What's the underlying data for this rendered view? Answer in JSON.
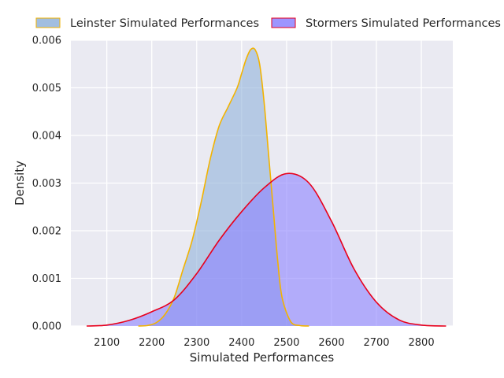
{
  "chart_data": {
    "type": "area",
    "title": "",
    "xlabel": "Simulated Performances",
    "ylabel": "Density",
    "xlim": [
      2020,
      2870
    ],
    "ylim": [
      0,
      0.006
    ],
    "xticks": [
      2100,
      2200,
      2300,
      2400,
      2500,
      2600,
      2700,
      2800
    ],
    "xtick_labels": [
      "2100",
      "2200",
      "2300",
      "2400",
      "2500",
      "2600",
      "2700",
      "2800"
    ],
    "yticks": [
      0,
      0.001,
      0.002,
      0.003,
      0.004,
      0.005,
      0.006
    ],
    "ytick_labels": [
      "0.000",
      "0.001",
      "0.002",
      "0.003",
      "0.004",
      "0.005",
      "0.006"
    ],
    "grid": true,
    "legend_position": "top",
    "series": [
      {
        "name": "Leinster Simulated Performances",
        "fill_color": "#91b3da",
        "line_color": "#f2b300",
        "x": [
          2170,
          2190,
          2210,
          2230,
          2250,
          2270,
          2290,
          2310,
          2330,
          2350,
          2370,
          2390,
          2400,
          2410,
          2420,
          2430,
          2440,
          2450,
          2460,
          2470,
          2480,
          2490,
          2510,
          2530,
          2550
        ],
        "y": [
          0.0,
          1e-05,
          7e-05,
          0.00025,
          0.0006,
          0.0012,
          0.0018,
          0.0026,
          0.0035,
          0.0042,
          0.0046,
          0.005,
          0.0053,
          0.0056,
          0.0058,
          0.0058,
          0.0055,
          0.0047,
          0.0036,
          0.0025,
          0.0014,
          0.0006,
          8e-05,
          1e-05,
          0.0
        ]
      },
      {
        "name": "Stormers Simulated Performances",
        "fill_color": "#8c82ff",
        "line_color": "#e8001c",
        "x": [
          2055,
          2100,
          2150,
          2200,
          2250,
          2300,
          2350,
          2400,
          2450,
          2500,
          2550,
          2600,
          2650,
          2700,
          2750,
          2800,
          2855
        ],
        "y": [
          0.0,
          2e-05,
          0.00012,
          0.0003,
          0.00055,
          0.0011,
          0.0018,
          0.0024,
          0.0029,
          0.0032,
          0.003,
          0.0022,
          0.0012,
          0.0005,
          0.00013,
          2e-05,
          0.0
        ]
      }
    ]
  }
}
